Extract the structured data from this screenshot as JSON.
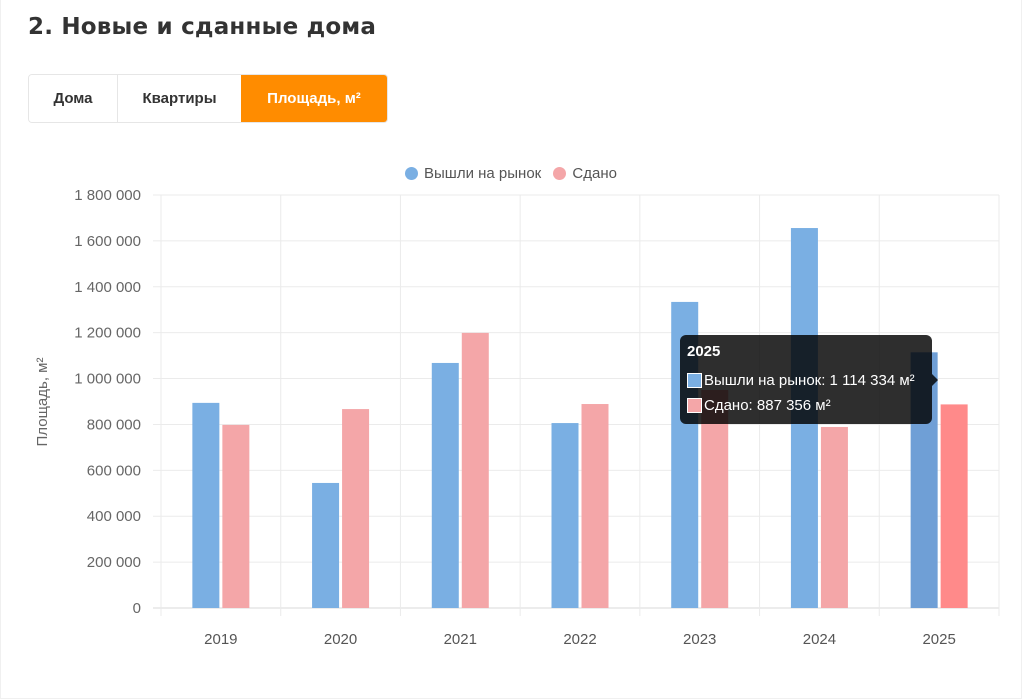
{
  "header": {
    "title": "2. Новые и сданные дома"
  },
  "tabs": [
    {
      "label": "Дома",
      "active": false
    },
    {
      "label": "Квартиры",
      "active": false
    },
    {
      "label": "Площадь, м²",
      "active": true
    }
  ],
  "colors": {
    "accent": "#ff8c00",
    "series_new": "#7aafe3",
    "series_done": "#f4a6a8",
    "series_done_hover": "#ff8a8a"
  },
  "chart_data": {
    "type": "bar",
    "title": "",
    "xlabel": "",
    "ylabel": "Площадь, м²",
    "ylim": [
      0,
      1800000
    ],
    "yticks": [
      0,
      200000,
      400000,
      600000,
      800000,
      1000000,
      1200000,
      1400000,
      1600000,
      1800000
    ],
    "ytick_labels": [
      "0",
      "200 000",
      "400 000",
      "600 000",
      "800 000",
      "1 000 000",
      "1 200 000",
      "1 400 000",
      "1 600 000",
      "1 800 000"
    ],
    "grid": true,
    "legend_position": "top",
    "categories": [
      "2019",
      "2020",
      "2021",
      "2022",
      "2023",
      "2024",
      "2025"
    ],
    "series": [
      {
        "name": "Вышли на рынок",
        "color": "#7aafe3",
        "values": [
          894000,
          545000,
          1068000,
          806000,
          1334000,
          1656000,
          1114334
        ]
      },
      {
        "name": "Сдано",
        "color": "#f4a6a8",
        "values": [
          798000,
          867000,
          1199000,
          889000,
          950000,
          789000,
          887356
        ]
      }
    ]
  },
  "tooltip": {
    "title": "2025",
    "rows": [
      {
        "label": "Вышли на рынок: 1 114 334 м²",
        "color": "#7aafe3"
      },
      {
        "label": "Сдано: 887 356 м²",
        "color": "#f4a6a8"
      }
    ]
  }
}
